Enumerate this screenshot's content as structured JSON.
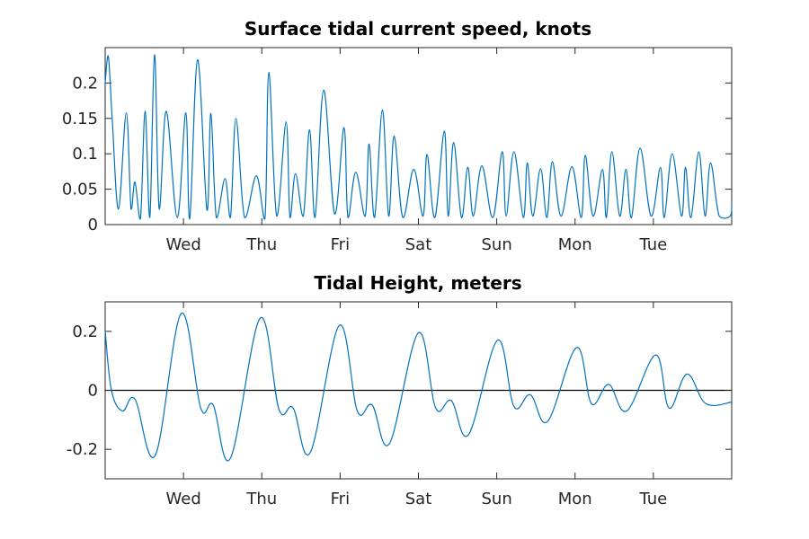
{
  "chart_data": [
    {
      "type": "line",
      "title": "Surface tidal current speed, knots",
      "xlabel": "",
      "ylabel": "",
      "x_tick_labels": [
        "Wed",
        "Thu",
        "Fri",
        "Sat",
        "Sun",
        "Mon",
        "Tue"
      ],
      "x_tick_days": [
        1,
        2,
        3,
        4,
        5,
        6,
        7
      ],
      "xlim_days": [
        0,
        8
      ],
      "ylim": [
        0,
        0.25
      ],
      "y_ticks": [
        0,
        0.05,
        0.1,
        0.15,
        0.2
      ],
      "y_tick_labels": [
        "0",
        "0.05",
        "0.1",
        "0.15",
        "0.2"
      ],
      "grid": false,
      "color": "#0072bd",
      "series": [
        {
          "x_days": [
            0.0,
            0.04,
            0.09,
            0.17,
            0.27,
            0.33,
            0.38,
            0.45,
            0.51,
            0.57,
            0.63,
            0.69,
            0.78,
            0.92,
            1.03,
            1.08,
            1.18,
            1.3,
            1.35,
            1.42,
            1.53,
            1.6,
            1.67,
            1.78,
            1.93,
            2.04,
            2.09,
            2.19,
            2.31,
            2.36,
            2.43,
            2.53,
            2.61,
            2.68,
            2.79,
            2.93,
            3.05,
            3.1,
            3.2,
            3.32,
            3.37,
            3.44,
            3.54,
            3.62,
            3.69,
            3.8,
            3.94,
            4.06,
            4.11,
            4.21,
            4.33,
            4.38,
            4.45,
            4.55,
            4.63,
            4.7,
            4.81,
            4.95,
            5.07,
            5.12,
            5.22,
            5.34,
            5.39,
            5.46,
            5.56,
            5.64,
            5.71,
            5.82,
            5.96,
            6.08,
            6.13,
            6.23,
            6.35,
            6.4,
            6.47,
            6.57,
            6.65,
            6.72,
            6.83,
            6.97,
            7.09,
            7.14,
            7.24,
            7.36,
            7.41,
            7.48,
            7.58,
            7.66,
            7.73,
            7.84,
            7.98,
            8.0
          ],
          "values": [
            0.2,
            0.238,
            0.15,
            0.022,
            0.158,
            0.022,
            0.06,
            0.008,
            0.16,
            0.01,
            0.24,
            0.022,
            0.16,
            0.01,
            0.158,
            0.008,
            0.233,
            0.02,
            0.157,
            0.01,
            0.065,
            0.01,
            0.15,
            0.01,
            0.069,
            0.008,
            0.215,
            0.012,
            0.145,
            0.01,
            0.072,
            0.012,
            0.134,
            0.01,
            0.19,
            0.015,
            0.137,
            0.01,
            0.074,
            0.012,
            0.114,
            0.01,
            0.162,
            0.012,
            0.125,
            0.01,
            0.078,
            0.012,
            0.099,
            0.01,
            0.132,
            0.012,
            0.116,
            0.01,
            0.081,
            0.012,
            0.083,
            0.01,
            0.103,
            0.012,
            0.103,
            0.01,
            0.087,
            0.012,
            0.079,
            0.01,
            0.089,
            0.012,
            0.082,
            0.01,
            0.098,
            0.012,
            0.078,
            0.01,
            0.103,
            0.012,
            0.078,
            0.01,
            0.108,
            0.012,
            0.081,
            0.01,
            0.1,
            0.012,
            0.081,
            0.01,
            0.103,
            0.012,
            0.087,
            0.012,
            0.012,
            0.03
          ]
        }
      ]
    },
    {
      "type": "line",
      "title": "Tidal Height, meters",
      "xlabel": "",
      "ylabel": "",
      "x_tick_labels": [
        "Wed",
        "Thu",
        "Fri",
        "Sat",
        "Sun",
        "Mon",
        "Tue"
      ],
      "x_tick_days": [
        1,
        2,
        3,
        4,
        5,
        6,
        7
      ],
      "xlim_days": [
        0,
        8
      ],
      "ylim": [
        -0.3,
        0.3
      ],
      "y_ticks": [
        -0.2,
        0,
        0.2
      ],
      "y_tick_labels": [
        "-0.2",
        "0",
        "0.2"
      ],
      "zero_line": true,
      "grid": false,
      "color": "#0072bd",
      "series": [
        {
          "x_days": [
            0.0,
            0.08,
            0.22,
            0.38,
            0.64,
            0.97,
            1.22,
            1.38,
            1.6,
            1.98,
            2.22,
            2.4,
            2.62,
            2.99,
            3.22,
            3.41,
            3.63,
            4.0,
            4.22,
            4.42,
            4.64,
            5.01,
            5.22,
            5.43,
            5.65,
            6.02,
            6.21,
            6.43,
            6.66,
            7.03,
            7.2,
            7.43,
            7.67,
            8.0
          ],
          "values": [
            0.2,
            0.0,
            -0.07,
            -0.03,
            -0.22,
            0.26,
            -0.06,
            -0.05,
            -0.23,
            0.245,
            -0.065,
            -0.06,
            -0.21,
            0.22,
            -0.07,
            -0.05,
            -0.18,
            0.195,
            -0.06,
            -0.035,
            -0.15,
            0.17,
            -0.055,
            -0.015,
            -0.105,
            0.145,
            -0.045,
            0.02,
            -0.07,
            0.12,
            -0.06,
            0.055,
            -0.045,
            -0.04
          ]
        }
      ]
    }
  ]
}
